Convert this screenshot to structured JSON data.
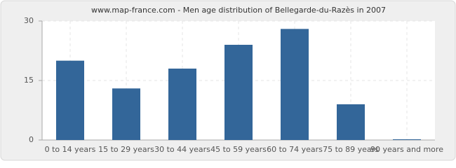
{
  "chart_data": {
    "type": "bar",
    "title": "www.map-france.com - Men age distribution of Bellegarde-du-Razès in 2007",
    "categories": [
      "0 to 14 years",
      "15 to 29 years",
      "30 to 44 years",
      "45 to 59 years",
      "60 to 74 years",
      "75 to 89 years",
      "90 years and more"
    ],
    "values": [
      20,
      13,
      18,
      24,
      28,
      9,
      0
    ],
    "color": "#336699",
    "ylim": [
      0,
      30
    ],
    "yticks": [
      0,
      15,
      30
    ],
    "grid": true
  }
}
